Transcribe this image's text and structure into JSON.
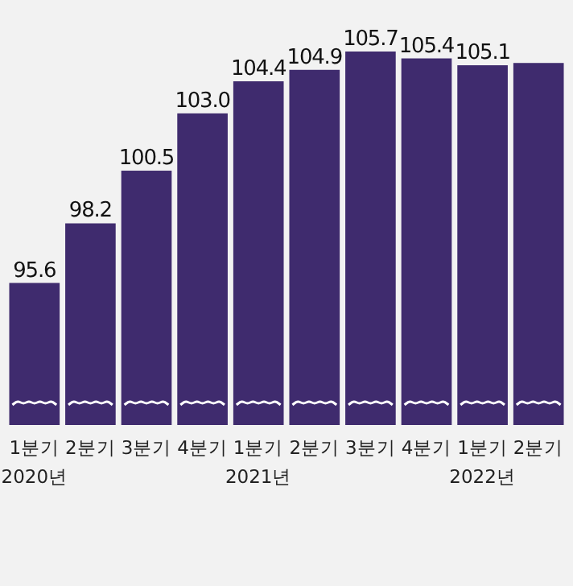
{
  "chart_data": {
    "type": "bar",
    "categories": [
      "1분기",
      "2분기",
      "3분기",
      "4분기",
      "1분기",
      "2분기",
      "3분기",
      "4분기",
      "1분기",
      "2분기"
    ],
    "values": [
      95.6,
      98.2,
      100.5,
      103.0,
      104.4,
      104.9,
      105.7,
      105.4,
      105.1,
      105.2
    ],
    "value_labels": [
      "95.6",
      "98.2",
      "100.5",
      "103.0",
      "104.4",
      "104.9",
      "105.7",
      "105.4",
      "105.1",
      null
    ],
    "color": "#3f2b6e",
    "ylim": [
      89.4,
      105.7
    ],
    "tick_labels": "x",
    "grid": false,
    "annotations": [
      "2020년",
      "2021년",
      "2022년"
    ]
  }
}
